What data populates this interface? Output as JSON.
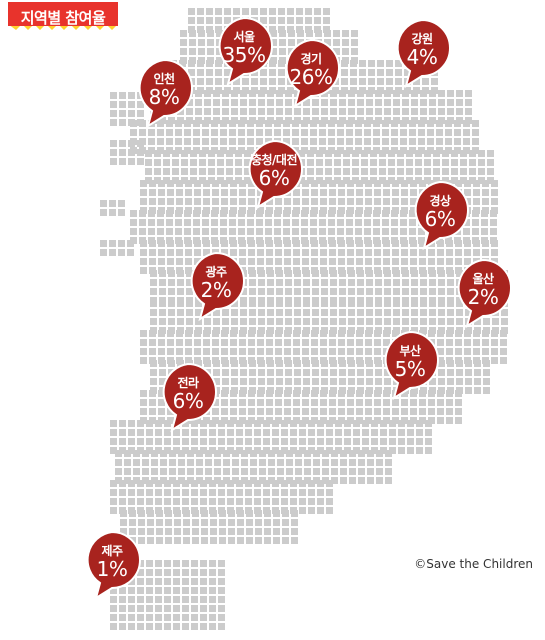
{
  "title": "지역별 참여율",
  "credit": "©Save the Children",
  "colors": {
    "bubble": "#a8231e",
    "bubble_border": "#ffffff",
    "badge": "#e8332c",
    "badge_accent": "#ffd22e",
    "map_dots": "#cccccc"
  },
  "chart_data": {
    "type": "map",
    "title": "지역별 참여율",
    "regions": [
      {
        "name": "서울",
        "value": "35%"
      },
      {
        "name": "경기",
        "value": "26%"
      },
      {
        "name": "강원",
        "value": "4%"
      },
      {
        "name": "인천",
        "value": "8%"
      },
      {
        "name": "충청/대전",
        "value": "6%"
      },
      {
        "name": "경상",
        "value": "6%"
      },
      {
        "name": "광주",
        "value": "2%"
      },
      {
        "name": "울산",
        "value": "2%"
      },
      {
        "name": "부산",
        "value": "5%"
      },
      {
        "name": "전라",
        "value": "6%"
      },
      {
        "name": "제주",
        "value": "1%"
      }
    ]
  }
}
